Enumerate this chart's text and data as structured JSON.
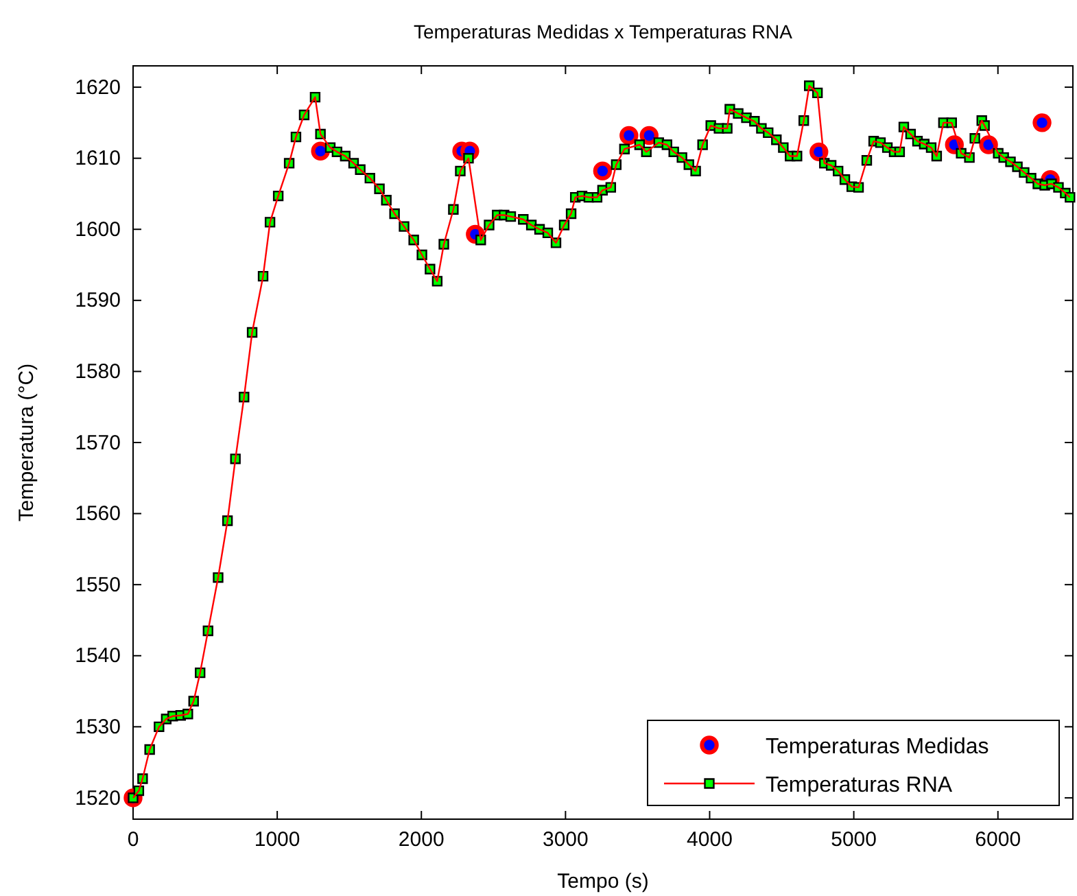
{
  "chart_data": {
    "type": "line",
    "title": "Temperaturas Medidas x Temperaturas RNA",
    "xlabel": "Tempo (s)",
    "ylabel": "Temperatura (°C)",
    "xlim": [
      0,
      6520
    ],
    "xticks": [
      0,
      1000,
      2000,
      3000,
      4000,
      5000,
      6000
    ],
    "ylim": [
      1517,
      1623
    ],
    "yticks": [
      1520,
      1530,
      1540,
      1550,
      1560,
      1570,
      1580,
      1590,
      1600,
      1610,
      1620
    ],
    "grid": false,
    "legend": "bottom right",
    "series": [
      {
        "name": "Temperaturas Medidas",
        "type": "scatter",
        "marker": "circle",
        "color": "#ff0000",
        "x": [
          0,
          1300,
          2280,
          2336,
          2374,
          3257,
          3440,
          3580,
          4758,
          5698,
          5935,
          6306,
          6363
        ],
        "values": [
          1520,
          1611,
          1611,
          1611,
          1599.3,
          1608.2,
          1613.2,
          1613.2,
          1610.9,
          1611.9,
          1611.9,
          1615,
          1607
        ]
      },
      {
        "name": "Temperaturas RNA",
        "marker": "square",
        "line_style": "solid",
        "color": "#ff0000",
        "x": [
          0,
          40,
          66,
          115,
          180,
          230,
          275,
          330,
          380,
          420,
          465,
          520,
          590,
          655,
          710,
          770,
          826,
          902,
          950,
          1007,
          1083,
          1130,
          1187,
          1263,
          1300,
          1368,
          1415,
          1472,
          1530,
          1576,
          1643,
          1709,
          1757,
          1814,
          1880,
          1947,
          2004,
          2060,
          2110,
          2156,
          2222,
          2270,
          2327,
          2412,
          2470,
          2526,
          2574,
          2620,
          2707,
          2763,
          2820,
          2877,
          2934,
          2991,
          3039,
          3068,
          3115,
          3162,
          3219,
          3257,
          3314,
          3352,
          3409,
          3514,
          3561,
          3647,
          3704,
          3751,
          3808,
          3856,
          3903,
          3951,
          4008,
          4065,
          4122,
          4140,
          4198,
          4255,
          4311,
          4359,
          4406,
          4463,
          4511,
          4558,
          4606,
          4653,
          4691,
          4748,
          4796,
          4843,
          4891,
          4938,
          4986,
          5033,
          5090,
          5138,
          5185,
          5233,
          5280,
          5318,
          5347,
          5394,
          5442,
          5489,
          5537,
          5575,
          5622,
          5679,
          5745,
          5802,
          5840,
          5888,
          5907,
          6002,
          6040,
          6087,
          6135,
          6182,
          6230,
          6277,
          6325,
          6372,
          6420,
          6467,
          6500
        ],
        "values": [
          1520,
          1521,
          1522.7,
          1526.8,
          1530,
          1531.1,
          1531.5,
          1531.6,
          1531.8,
          1533.6,
          1537.6,
          1543.5,
          1551,
          1559,
          1567.7,
          1576.4,
          1585.5,
          1593.4,
          1601,
          1604.7,
          1609.3,
          1613,
          1616.1,
          1618.6,
          1613.4,
          1611.5,
          1610.9,
          1610.3,
          1609.3,
          1608.4,
          1607.2,
          1605.7,
          1604.1,
          1602.2,
          1600.4,
          1598.5,
          1596.4,
          1594.4,
          1592.7,
          1597.9,
          1602.8,
          1608.2,
          1610,
          1598.5,
          1600.6,
          1602,
          1602,
          1601.8,
          1601.4,
          1600.6,
          1600,
          1599.5,
          1598.1,
          1600.6,
          1602.2,
          1604.5,
          1604.7,
          1604.5,
          1604.5,
          1605.5,
          1605.9,
          1609.1,
          1611.3,
          1611.9,
          1610.9,
          1612.2,
          1611.9,
          1610.9,
          1610.1,
          1609.1,
          1608.2,
          1611.9,
          1614.6,
          1614.2,
          1614.2,
          1616.9,
          1616.3,
          1615.7,
          1615.2,
          1614.2,
          1613.6,
          1612.6,
          1611.5,
          1610.3,
          1610.3,
          1615.3,
          1620.2,
          1619.2,
          1609.3,
          1609,
          1608.2,
          1607,
          1606,
          1605.9,
          1609.7,
          1612.4,
          1612.2,
          1611.5,
          1610.9,
          1610.9,
          1614.4,
          1613.4,
          1612.4,
          1612,
          1611.5,
          1610.3,
          1615,
          1615,
          1610.7,
          1610.1,
          1612.8,
          1615.3,
          1614.6,
          1610.7,
          1610.1,
          1609.5,
          1608.8,
          1608,
          1607.2,
          1606.4,
          1606.2,
          1606.4,
          1605.9,
          1605.1,
          1604.5
        ]
      }
    ]
  }
}
